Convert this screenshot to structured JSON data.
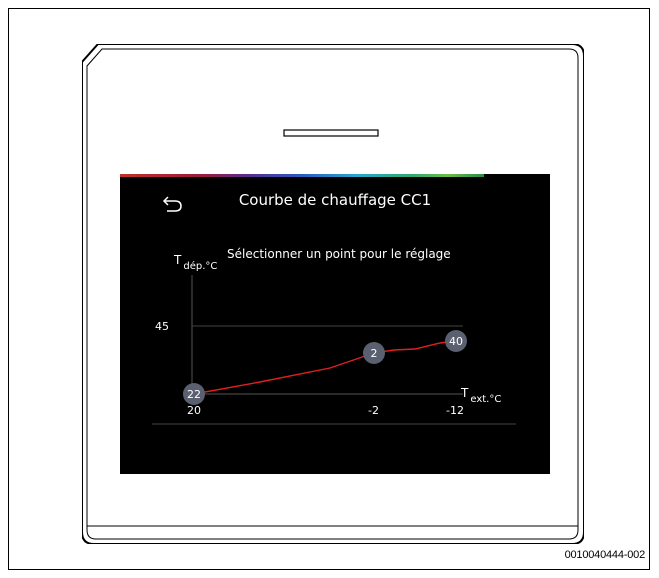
{
  "screen": {
    "title": "Courbe de chauffage CC1",
    "instruction": "Sélectionner un point pour le réglage",
    "y_axis": {
      "label": "T",
      "subscript": "dép.°C",
      "tick": "45"
    },
    "x_axis": {
      "label": "T",
      "subscript": "ext.°C",
      "ticks": [
        "20",
        "-2",
        "-12"
      ]
    },
    "points": [
      {
        "label": "22",
        "outdoor": "20"
      },
      {
        "label": "2",
        "outdoor": "-2"
      },
      {
        "label": "40",
        "outdoor": "-12"
      }
    ],
    "icons": {
      "back": "back-arrow-icon"
    },
    "colors": {
      "curve": "#e02020",
      "point": "#5a6070",
      "background": "#000000"
    }
  },
  "figure_id": "0010040444-002"
}
